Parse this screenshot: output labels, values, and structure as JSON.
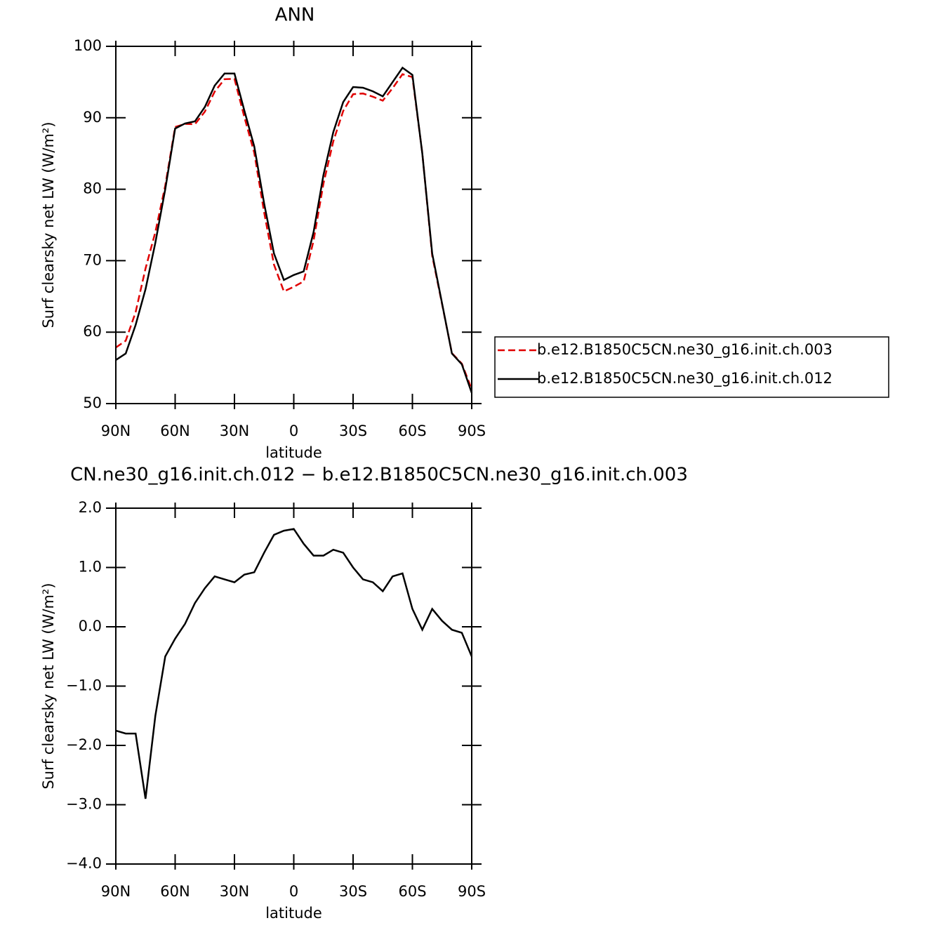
{
  "chart_data": [
    {
      "type": "line",
      "title": "ANN",
      "x_label": "latitude",
      "y_label": "Surf clearsky net LW (W/m²)",
      "x": [
        90,
        85,
        80,
        75,
        70,
        65,
        60,
        55,
        50,
        45,
        40,
        35,
        30,
        25,
        20,
        15,
        10,
        5,
        0,
        -5,
        -10,
        -15,
        -20,
        -25,
        -30,
        -35,
        -40,
        -45,
        -50,
        -55,
        -60,
        -65,
        -70,
        -75,
        -80,
        -85,
        -90
      ],
      "xlim": [
        90,
        -90
      ],
      "xticks": [
        {
          "value": 90,
          "label": "90N"
        },
        {
          "value": 60,
          "label": "60N"
        },
        {
          "value": 30,
          "label": "30N"
        },
        0,
        {
          "value": -30,
          "label": "30S"
        },
        {
          "value": -60,
          "label": "60S"
        },
        {
          "value": -90,
          "label": "90S"
        }
      ],
      "ylim": [
        50,
        100
      ],
      "yticks": [
        50,
        60,
        70,
        80,
        90,
        100
      ],
      "legend": "right",
      "series": [
        {
          "name": "b.e12.B1850C5CN.ne30_g16.init.ch.003",
          "color": "#e00000",
          "dash": true,
          "values": [
            57.85,
            58.8,
            62.8,
            68.9,
            74,
            80.5,
            88.7,
            89.15,
            89.1,
            90.85,
            93.65,
            95.4,
            95.45,
            90.1,
            85.1,
            76.75,
            69.45,
            65.7,
            66.35,
            67.1,
            72.8,
            80.8,
            86.7,
            90.95,
            93.3,
            93.4,
            92.95,
            92.4,
            94.15,
            96.1,
            95.7,
            85.05,
            70.7,
            63.9,
            57.05,
            55.6,
            52
          ]
        },
        {
          "name": "b.e12.B1850C5CN.ne30_g16.init.ch.012",
          "color": "#000000",
          "dash": false,
          "values": [
            56.1,
            57,
            61,
            66,
            72.5,
            80,
            88.5,
            89.2,
            89.5,
            91.5,
            94.5,
            96.2,
            96.2,
            91,
            86,
            78,
            71,
            67.3,
            68,
            68.5,
            74,
            82,
            88,
            92.2,
            94.3,
            94.2,
            93.7,
            93,
            95,
            97,
            96,
            85,
            71,
            64,
            57,
            55.5,
            51.5
          ]
        }
      ]
    },
    {
      "type": "line",
      "title": "CN.ne30_g16.init.ch.012 − b.e12.B1850C5CN.ne30_g16.init.ch.003",
      "x_label": "latitude",
      "y_label": "Surf clearsky net LW (W/m²)",
      "x": [
        90,
        85,
        80,
        75,
        70,
        65,
        60,
        55,
        50,
        45,
        40,
        35,
        30,
        25,
        20,
        15,
        10,
        5,
        0,
        -5,
        -10,
        -15,
        -20,
        -25,
        -30,
        -35,
        -40,
        -45,
        -50,
        -55,
        -60,
        -65,
        -70,
        -75,
        -80,
        -85,
        -90
      ],
      "xlim": [
        90,
        -90
      ],
      "xticks": [
        {
          "value": 90,
          "label": "90N"
        },
        {
          "value": 60,
          "label": "60N"
        },
        {
          "value": 30,
          "label": "30N"
        },
        0,
        {
          "value": -30,
          "label": "30S"
        },
        {
          "value": -60,
          "label": "60S"
        },
        {
          "value": -90,
          "label": "90S"
        }
      ],
      "ylim": [
        -4,
        2
      ],
      "yticks": [
        {
          "value": -4,
          "label": "−4.0"
        },
        {
          "value": -3,
          "label": "−3.0"
        },
        {
          "value": -2,
          "label": "−2.0"
        },
        {
          "value": -1,
          "label": "−1.0"
        },
        {
          "value": 0,
          "label": "0.0"
        },
        {
          "value": 1,
          "label": "1.0"
        },
        {
          "value": 2,
          "label": "2.0"
        }
      ],
      "color": "#000000",
      "values": [
        -1.75,
        -1.8,
        -1.8,
        -2.9,
        -1.5,
        -0.5,
        -0.2,
        0.05,
        0.4,
        0.65,
        0.85,
        0.8,
        0.75,
        0.88,
        0.92,
        1.25,
        1.55,
        1.62,
        1.65,
        1.4,
        1.2,
        1.2,
        1.3,
        1.25,
        1.0,
        0.8,
        0.75,
        0.6,
        0.85,
        0.9,
        0.3,
        -0.05,
        0.3,
        0.1,
        -0.05,
        -0.1,
        -0.5
      ]
    }
  ]
}
